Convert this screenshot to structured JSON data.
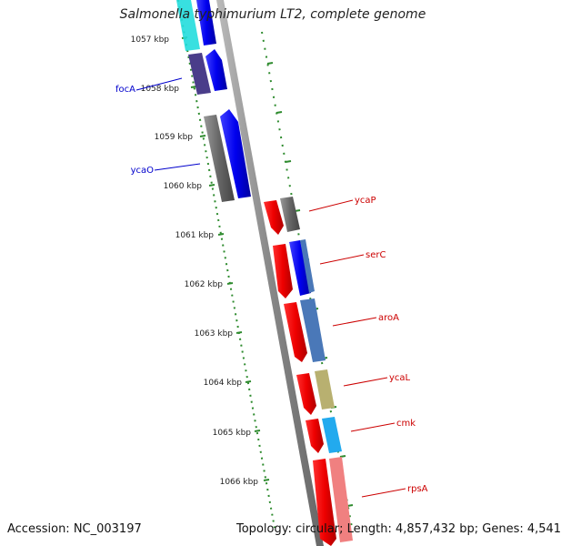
{
  "title": "Salmonella typhimurium LT2, complete genome",
  "footer": {
    "accession": "Accession: NC_003197",
    "summary": "Topology: circular; Length: 4,857,432 bp; Genes: 4,541"
  },
  "ticks": [
    {
      "label": "1057 kbp"
    },
    {
      "label": "1058 kbp"
    },
    {
      "label": "1059 kbp"
    },
    {
      "label": "1060 kbp"
    },
    {
      "label": "1061 kbp"
    },
    {
      "label": "1062 kbp"
    },
    {
      "label": "1063 kbp"
    },
    {
      "label": "1064 kbp"
    },
    {
      "label": "1065 kbp"
    },
    {
      "label": "1066 kbp"
    }
  ],
  "labels": {
    "focA": "focA",
    "ycaO": "ycaO",
    "ycaP": "ycaP",
    "serC": "serC",
    "aroA": "aroA",
    "ycaL": "ycaL",
    "cmk": "cmk",
    "rpsA": "rpsA"
  },
  "colors": {
    "forward_strand": "#0000ee",
    "reverse_strand": "#ee0000",
    "backbone": "#888888",
    "ticks": "#2e8b2e"
  }
}
